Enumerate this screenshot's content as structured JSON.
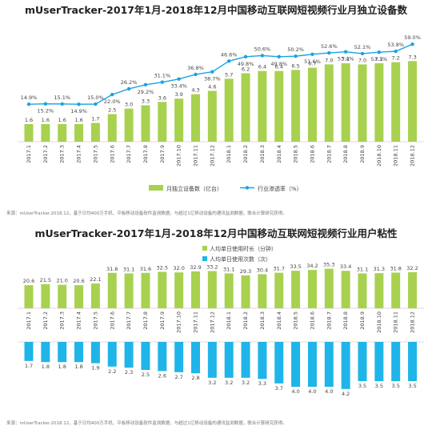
{
  "chart_data": [
    {
      "type": "bar+line",
      "title": "mUserTracker-2017年1月-2018年12月中国移动互联网短视频行业月独立设备数",
      "categories": [
        "2017.1",
        "2017.2",
        "2017.3",
        "2017.4",
        "2017.5",
        "2017.6",
        "2017.7",
        "2017.8",
        "2017.9",
        "2017.10",
        "2017.11",
        "2017.12",
        "2018.1",
        "2018.2",
        "2018.3",
        "2018.4",
        "2018.5",
        "2018.6",
        "2018.7",
        "2018.8",
        "2018.9",
        "2018.10",
        "2018.11",
        "2018.12"
      ],
      "series": [
        {
          "name": "月独立设备数（亿台）",
          "type": "bar",
          "color": "#a8d14f",
          "values": [
            1.6,
            1.6,
            1.6,
            1.6,
            1.7,
            2.5,
            3.0,
            3.3,
            3.6,
            3.9,
            4.3,
            4.6,
            5.7,
            6.2,
            6.4,
            6.4,
            6.5,
            6.7,
            7.0,
            7.1,
            7.0,
            7.1,
            7.2,
            7.3
          ]
        },
        {
          "name": "行业渗透率（%）",
          "type": "line",
          "color": "#1aa3df",
          "values": [
            14.9,
            15.2,
            15.1,
            14.9,
            15.0,
            22.0,
            26.2,
            29.2,
            31.1,
            33.4,
            36.8,
            38.7,
            46.6,
            49.8,
            50.6,
            49.8,
            50.2,
            51.6,
            52.6,
            53.4,
            52.1,
            53.1,
            53.8,
            59.0
          ]
        }
      ],
      "line_labels": [
        "14.9%",
        "15.2%",
        "15.1%",
        "14.9%",
        "15.0%",
        "22.0%",
        "26.2%",
        "29.2%",
        "31.1%",
        "33.4%",
        "36.8%",
        "38.7%",
        "46.6%",
        "49.8%",
        "50.6%",
        "49.8%",
        "50.2%",
        "51.6%",
        "52.6%",
        "53.4%",
        "52.1%",
        "53.1%",
        "53.8%",
        "59.0%"
      ],
      "source": "来源：mUserTracker.2018.12，基于日均400万手机、平板移动设备软件监测数据，与超过1亿移动设备的通讯监测数据，联合计算研究获得。"
    },
    {
      "type": "bar",
      "title": "mUserTracker-2017年1月-2018年12月中国移动互联网短视频行业用户粘性",
      "categories": [
        "2017.1",
        "2017.2",
        "2017.3",
        "2017.4",
        "2017.5",
        "2017.6",
        "2017.7",
        "2017.8",
        "2017.9",
        "2017.10",
        "2017.11",
        "2017.12",
        "2018.1",
        "2018.2",
        "2018.3",
        "2018.4",
        "2018.5",
        "2018.6",
        "2018.7",
        "2018.8",
        "2018.9",
        "2018.10",
        "2018.11",
        "2018.12"
      ],
      "series": [
        {
          "name": "人均单日使用时长（分钟）",
          "color": "#a8d14f",
          "values": [
            20.6,
            21.5,
            21.0,
            20.6,
            22.1,
            31.6,
            31.1,
            31.6,
            32.5,
            32.0,
            32.9,
            33.2,
            31.1,
            29.3,
            30.4,
            31.7,
            33.5,
            34.2,
            35.3,
            33.4,
            31.1,
            31.3,
            31.8,
            32.2
          ]
        },
        {
          "name": "人均单日使用次数（次）",
          "color": "#1fb5e8",
          "values": [
            1.7,
            1.8,
            1.8,
            1.8,
            1.9,
            2.2,
            2.3,
            2.5,
            2.6,
            2.7,
            2.8,
            3.2,
            3.2,
            3.2,
            3.3,
            3.7,
            4.0,
            4.0,
            4.0,
            4.2,
            3.5,
            3.5,
            3.5,
            3.5
          ]
        }
      ],
      "source": "来源：mUserTracker.2018.12，基于日均400万手机、平板移动设备软件监测数据，与超过1亿移动设备的通讯监测数据，联合计算研究获得。"
    }
  ]
}
